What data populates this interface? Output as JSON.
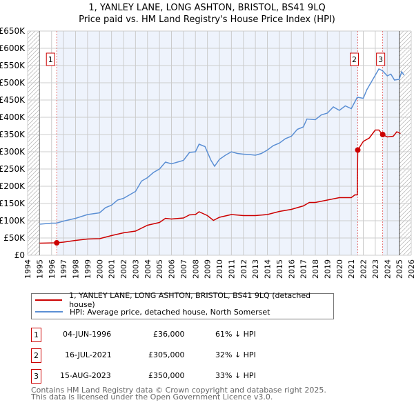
{
  "title_line1": "1, YANLEY LANE, LONG ASHTON, BRISTOL, BS41 9LQ",
  "title_line2": "Price paid vs. HM Land Registry's House Price Index (HPI)",
  "chart_data": {
    "type": "line",
    "title": "1, YANLEY LANE, LONG ASHTON, BRISTOL, BS41 9LQ — Price paid vs. HM Land Registry's House Price Index (HPI)",
    "xlim": [
      1994,
      2026
    ],
    "ylim": [
      0,
      650000
    ],
    "x_ticks": [
      "1994",
      "1995",
      "1996",
      "1997",
      "1998",
      "1999",
      "2000",
      "2001",
      "2002",
      "2003",
      "2004",
      "2005",
      "2006",
      "2007",
      "2008",
      "2009",
      "2010",
      "2011",
      "2012",
      "2013",
      "2014",
      "2015",
      "2016",
      "2017",
      "2018",
      "2019",
      "2020",
      "2021",
      "2022",
      "2023",
      "2024",
      "2025",
      "2026"
    ],
    "y_ticks": [
      "£0",
      "£50K",
      "£100K",
      "£150K",
      "£200K",
      "£250K",
      "£300K",
      "£350K",
      "£400K",
      "£450K",
      "£500K",
      "£550K",
      "£600K",
      "£650K"
    ],
    "grid": true,
    "colors": {
      "property": "#cc0000",
      "hpi": "#5b8fd4",
      "shade": "#eef3fc"
    },
    "series": [
      {
        "name": "1, YANLEY LANE, LONG ASHTON, BRISTOL, BS41 9LQ (detached house)",
        "color": "#cc0000",
        "x": [
          1995,
          1996.4,
          1997,
          1998,
          1999,
          2000,
          2001,
          2002,
          2003,
          2004,
          2005,
          2005.5,
          2006,
          2007,
          2007.5,
          2008,
          2008.3,
          2009,
          2009.5,
          2010,
          2011,
          2012,
          2013,
          2014,
          2015,
          2016,
          2017,
          2017.5,
          2018,
          2019,
          2020,
          2021,
          2021.3,
          2021.5,
          2021.54,
          2022,
          2022.5,
          2023,
          2023.3,
          2023.6,
          2024,
          2024.5,
          2024.8,
          2025.1
        ],
        "y": [
          35,
          36,
          38,
          43,
          47,
          48,
          57,
          65,
          70,
          87,
          95,
          107,
          105,
          108,
          117,
          118,
          126,
          115,
          101,
          110,
          118,
          115,
          115,
          118,
          127,
          133,
          143,
          153,
          153,
          160,
          167,
          167,
          175,
          175,
          305,
          330,
          340,
          363,
          363,
          350,
          343,
          345,
          358,
          353
        ]
      },
      {
        "name": "HPI: Average price, detached house, North Somerset",
        "color": "#5b8fd4",
        "x": [
          1995,
          1996,
          1996.4,
          1997,
          1998,
          1999,
          2000,
          2000.5,
          2001,
          2001.5,
          2002,
          2002.5,
          2003,
          2003.5,
          2004,
          2004.5,
          2005,
          2005.5,
          2006,
          2006.5,
          2007,
          2007.5,
          2008,
          2008.3,
          2008.8,
          2009.3,
          2009.6,
          2010,
          2010.5,
          2011,
          2011.5,
          2012,
          2012.5,
          2013,
          2013.5,
          2014,
          2014.5,
          2015,
          2015.5,
          2016,
          2016.5,
          2017,
          2017.3,
          2018,
          2018.5,
          2019,
          2019.5,
          2020,
          2020.5,
          2021,
          2021.5,
          2022,
          2022.3,
          2022.8,
          2023.3,
          2023.6,
          2024,
          2024.3,
          2024.6,
          2025,
          2025.2,
          2025.4
        ],
        "y": [
          90,
          93,
          93,
          99,
          107,
          118,
          123,
          138,
          145,
          160,
          165,
          175,
          185,
          215,
          225,
          240,
          250,
          270,
          265,
          270,
          275,
          298,
          300,
          322,
          315,
          275,
          258,
          278,
          290,
          300,
          295,
          293,
          292,
          290,
          295,
          305,
          318,
          325,
          338,
          345,
          365,
          372,
          395,
          393,
          407,
          412,
          430,
          420,
          433,
          425,
          458,
          455,
          480,
          510,
          540,
          535,
          520,
          525,
          508,
          510,
          532,
          522
        ]
      }
    ],
    "y_units": "thousands GBP",
    "sales": [
      {
        "label": "1",
        "x": 1996.43,
        "price": 36000
      },
      {
        "label": "2",
        "x": 2021.54,
        "price": 305000
      },
      {
        "label": "3",
        "x": 2023.62,
        "price": 350000
      }
    ],
    "legend_position": "below"
  },
  "legend": {
    "property": "1, YANLEY LANE, LONG ASHTON, BRISTOL, BS41 9LQ (detached house)",
    "hpi": "HPI: Average price, detached house, North Somerset"
  },
  "transactions": [
    {
      "num": "1",
      "date": "04-JUN-1996",
      "price": "£36,000",
      "diff": "61% ↓ HPI"
    },
    {
      "num": "2",
      "date": "16-JUL-2021",
      "price": "£305,000",
      "diff": "32% ↓ HPI"
    },
    {
      "num": "3",
      "date": "15-AUG-2023",
      "price": "£350,000",
      "diff": "33% ↓ HPI"
    }
  ],
  "footer": {
    "line1": "Contains HM Land Registry data © Crown copyright and database right 2025.",
    "line2": "This data is licensed under the Open Government Licence v3.0."
  }
}
